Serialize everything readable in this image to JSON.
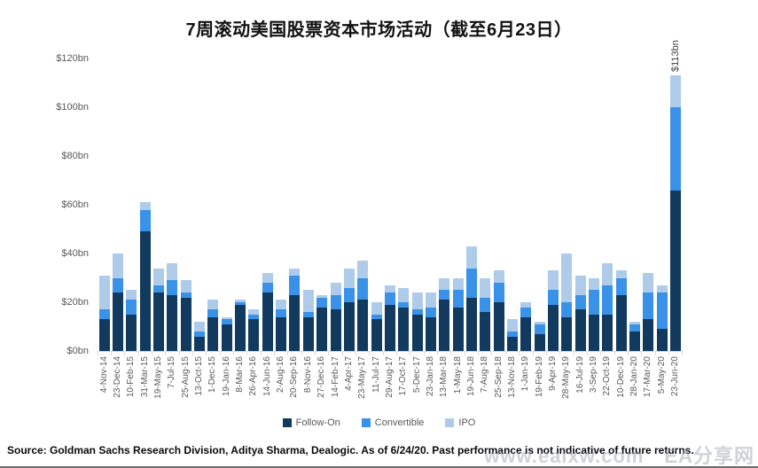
{
  "title": "7周滚动美国股票资本市场活动（截至6月23日）",
  "footer": {
    "text": "Source: Goldman Sachs Research Division, Aditya Sharma, Dealogic. As of 6/24/20. Past performance is not indicative of future returns."
  },
  "watermark": {
    "text": "www.eaixw.com　EA分享网"
  },
  "colors": {
    "follow_on": "#123a5e",
    "convertible": "#3a92e8",
    "ipo": "#aecbe9",
    "axis_text": "#595959"
  },
  "chart_data": {
    "type": "bar",
    "stacked": true,
    "title": "7周滚动美国股票资本市场活动（截至6月23日）",
    "xlabel": "",
    "ylabel": "",
    "ylim": [
      0,
      120
    ],
    "yticks": [
      "$0bn",
      "$20bn",
      "$40bn",
      "$60bn",
      "$80bn",
      "$100bn",
      "$120bn"
    ],
    "grid": false,
    "legend_position": "bottom",
    "categories": [
      "4-Nov-14",
      "23-Dec-14",
      "10-Feb-15",
      "31-Mar-15",
      "19-May-15",
      "7-Jul-15",
      "25-Aug-15",
      "13-Oct-15",
      "1-Dec-15",
      "19-Jan-16",
      "8-Mar-16",
      "26-Apr-16",
      "14-Jun-16",
      "2-Aug-16",
      "20-Sep-16",
      "8-Nov-16",
      "27-Dec-16",
      "14-Feb-17",
      "4-Apr-17",
      "23-May-17",
      "11-Jul-17",
      "29-Aug-17",
      "17-Oct-17",
      "5-Dec-17",
      "23-Jan-18",
      "13-Mar-18",
      "1-May-18",
      "19-Jun-18",
      "7-Aug-18",
      "25-Sep-18",
      "13-Nov-18",
      "1-Jan-19",
      "19-Feb-19",
      "9-Apr-19",
      "28-May-19",
      "16-Jul-19",
      "3-Sep-19",
      "22-Oct-19",
      "10-Dec-19",
      "28-Jan-20",
      "17-Mar-20",
      "5-May-20",
      "23-Jun-20"
    ],
    "series": [
      {
        "name": "Follow-On",
        "color": "#123a5e",
        "values": [
          13,
          24,
          15,
          49,
          24,
          23,
          22,
          6,
          14,
          11,
          19,
          13,
          24,
          14,
          23,
          14,
          18,
          17,
          20,
          21,
          13,
          19,
          18,
          15,
          14,
          21,
          18,
          22,
          16,
          20,
          6,
          14,
          7,
          19,
          14,
          17,
          15,
          15,
          23,
          8,
          13,
          9,
          66
        ]
      },
      {
        "name": "Convertible",
        "color": "#3a92e8",
        "values": [
          4,
          6,
          6,
          9,
          3,
          6,
          2,
          2,
          3,
          2,
          1,
          2,
          4,
          3,
          8,
          2,
          4,
          6,
          6,
          9,
          2,
          5,
          2,
          2,
          4,
          4,
          7,
          12,
          6,
          8,
          2,
          4,
          4,
          6,
          6,
          6,
          10,
          12,
          7,
          3,
          11,
          15,
          34
        ]
      },
      {
        "name": "IPO",
        "color": "#aecbe9",
        "values": [
          14,
          10,
          4,
          3,
          7,
          7,
          5,
          4,
          4,
          1,
          1,
          2,
          4,
          4,
          3,
          9,
          1,
          5,
          8,
          7,
          5,
          3,
          6,
          7,
          6,
          5,
          5,
          9,
          8,
          5,
          5,
          2,
          1,
          8,
          20,
          8,
          5,
          9,
          3,
          1,
          8,
          3,
          13
        ]
      }
    ],
    "annotations": [
      {
        "text": "$113bn",
        "category": "23-Jun-20"
      }
    ]
  }
}
